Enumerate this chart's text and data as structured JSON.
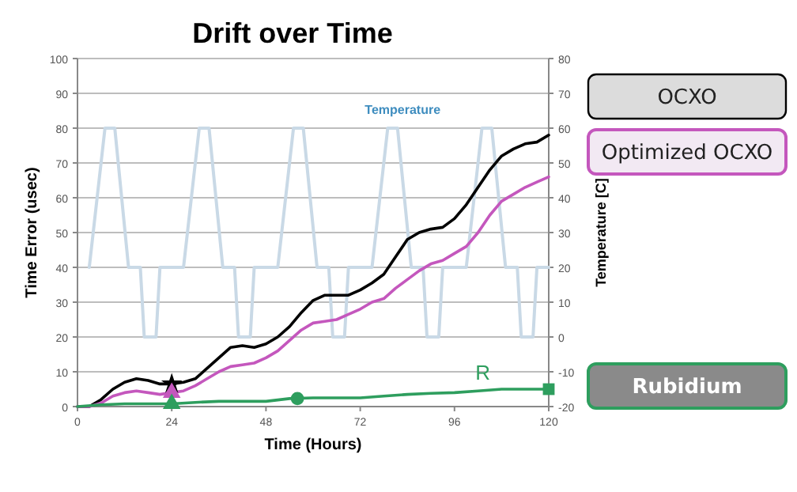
{
  "chart_data": {
    "type": "line",
    "title": "Drift over Time",
    "xlabel": "Time (Hours)",
    "ylabel": "Time Error  (usec)",
    "y2label": "Temperature [C]",
    "xlim": [
      0,
      120
    ],
    "xticks": [
      0,
      24,
      48,
      72,
      96,
      120
    ],
    "ylim": [
      0,
      100
    ],
    "yticks": [
      0,
      10,
      20,
      30,
      40,
      50,
      60,
      70,
      80,
      90,
      100
    ],
    "y2lim": [
      -20,
      80
    ],
    "y2ticks": [
      -20,
      -10,
      0,
      10,
      20,
      30,
      40,
      50,
      60,
      70,
      80
    ],
    "grid": "y",
    "legend": "right",
    "line_style": "solid",
    "marker": "none",
    "annotations": [
      "R"
    ],
    "series": [
      {
        "name": "Temperature",
        "color": "#c9d9e6",
        "axis": "y2",
        "x": [
          3,
          7,
          9.5,
          13,
          16,
          17,
          20,
          21,
          27,
          31,
          33.5,
          37,
          40,
          41,
          44,
          45,
          51,
          55,
          57.5,
          61,
          64,
          65,
          68,
          69,
          75,
          79,
          81.5,
          85,
          88,
          89,
          92,
          93,
          99,
          103,
          105.5,
          109,
          112,
          113,
          116,
          117,
          120
        ],
        "values": [
          20,
          60,
          60,
          20,
          20,
          0,
          0,
          20,
          20,
          60,
          60,
          20,
          20,
          0,
          0,
          20,
          20,
          60,
          60,
          20,
          20,
          0,
          0,
          20,
          20,
          60,
          60,
          20,
          20,
          0,
          0,
          20,
          20,
          60,
          60,
          20,
          20,
          0,
          0,
          20,
          20
        ]
      },
      {
        "name": "OCXO",
        "color": "#000000",
        "x": [
          0,
          3,
          6,
          9,
          12,
          15,
          18,
          21,
          24,
          27,
          30,
          33,
          36,
          39,
          42,
          45,
          48,
          51,
          54,
          57,
          60,
          63,
          66,
          69,
          72,
          75,
          78,
          81,
          84,
          87,
          90,
          93,
          96,
          99,
          102,
          105,
          108,
          111,
          114,
          117,
          120
        ],
        "values": [
          0,
          0,
          2,
          5,
          7,
          8,
          7.5,
          6.5,
          6.5,
          7,
          8,
          11,
          14,
          17,
          17.5,
          17,
          18,
          20,
          23,
          27,
          30.5,
          32,
          32,
          32,
          33.5,
          35.5,
          38,
          43,
          48,
          50,
          51,
          51.5,
          54,
          58,
          63,
          68,
          72,
          74,
          75.5,
          76,
          78
        ]
      },
      {
        "name": "Optimized OCXO",
        "color": "#c457bd",
        "x": [
          0,
          3,
          6,
          9,
          12,
          15,
          18,
          21,
          24,
          27,
          30,
          33,
          36,
          39,
          42,
          45,
          48,
          51,
          54,
          57,
          60,
          63,
          66,
          69,
          72,
          75,
          78,
          81,
          84,
          87,
          90,
          93,
          96,
          99,
          102,
          105,
          108,
          111,
          114,
          117,
          120
        ],
        "values": [
          0,
          0,
          1,
          3,
          4,
          4.5,
          4,
          3.5,
          4,
          4.5,
          6,
          8,
          10,
          11.5,
          12,
          12.5,
          14,
          16,
          19,
          22,
          24,
          24.5,
          25,
          26.5,
          28,
          30,
          31,
          34,
          36.5,
          39,
          41,
          42,
          44,
          46,
          50,
          55,
          59,
          61,
          63,
          64.5,
          66
        ]
      },
      {
        "name": "Rubidium",
        "color": "#2e9e5e",
        "x": [
          0,
          6,
          12,
          18,
          24,
          30,
          36,
          42,
          48,
          54,
          60,
          66,
          72,
          78,
          84,
          90,
          96,
          102,
          108,
          114,
          120
        ],
        "values": [
          0,
          0.5,
          0.8,
          0.8,
          0.8,
          1.2,
          1.5,
          1.5,
          1.5,
          2.3,
          2.5,
          2.5,
          2.5,
          3,
          3.5,
          3.8,
          4,
          4.5,
          5,
          5,
          5
        ]
      },
      {
        "type": "scatter",
        "marker": "star",
        "color": "#000000",
        "x": [
          24
        ],
        "values": [
          6.5
        ]
      },
      {
        "type": "scatter",
        "marker": "triangle",
        "color": "#c457bd",
        "x": [
          24
        ],
        "values": [
          4
        ]
      },
      {
        "type": "scatter",
        "marker": "triangle",
        "color": "#2e9e5e",
        "x": [
          24
        ],
        "values": [
          0.8
        ]
      },
      {
        "type": "scatter",
        "marker": "circle",
        "color": "#2e9e5e",
        "x": [
          56
        ],
        "values": [
          2.3
        ]
      },
      {
        "type": "scatter",
        "marker": "square",
        "color": "#2e9e5e",
        "x": [
          120
        ],
        "values": [
          5
        ]
      }
    ]
  }
}
